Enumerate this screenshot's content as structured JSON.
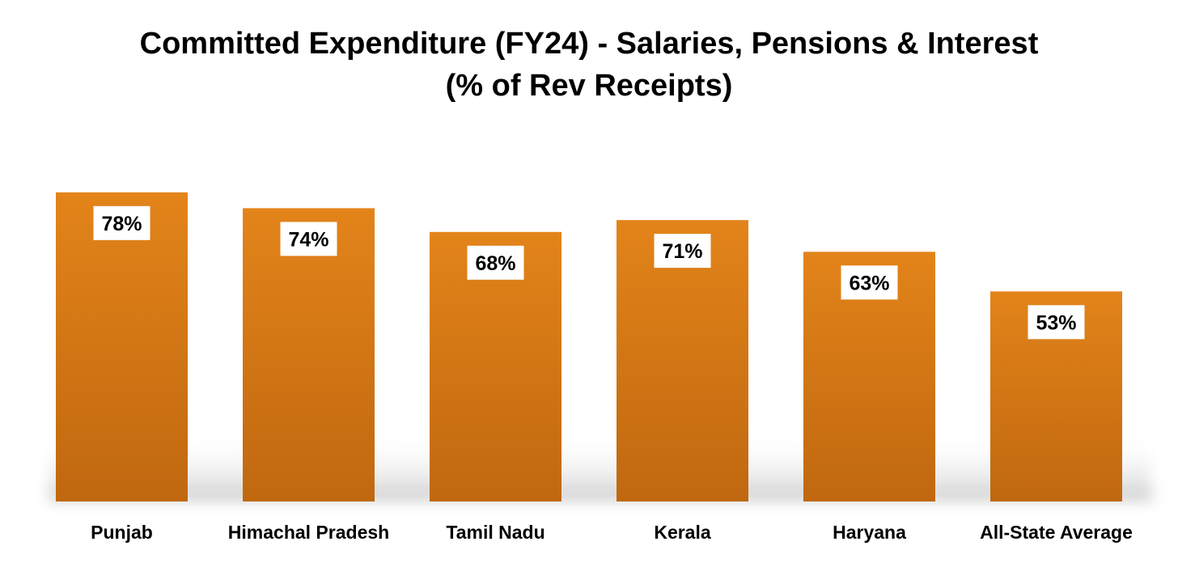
{
  "chart_data": {
    "type": "bar",
    "title_lines": [
      "Committed Expenditure (FY24) - Salaries, Pensions & Interest",
      "(% of Rev Receipts)"
    ],
    "categories": [
      "Punjab",
      "Himachal Pradesh",
      "Tamil Nadu",
      "Kerala",
      "Haryana",
      "All-State Average"
    ],
    "values": [
      78,
      74,
      68,
      71,
      63,
      53
    ],
    "value_labels": [
      "78%",
      "74%",
      "68%",
      "71%",
      "63%",
      "53%"
    ],
    "xlabel": "",
    "ylabel": "",
    "ylim": [
      0,
      100
    ],
    "grid": false,
    "legend": "none",
    "bar_color_top": "#E3841A",
    "bar_color_bottom": "#C06810",
    "label_box_color": "#FFFFFF",
    "shadow_color": "#CFCFCF"
  }
}
